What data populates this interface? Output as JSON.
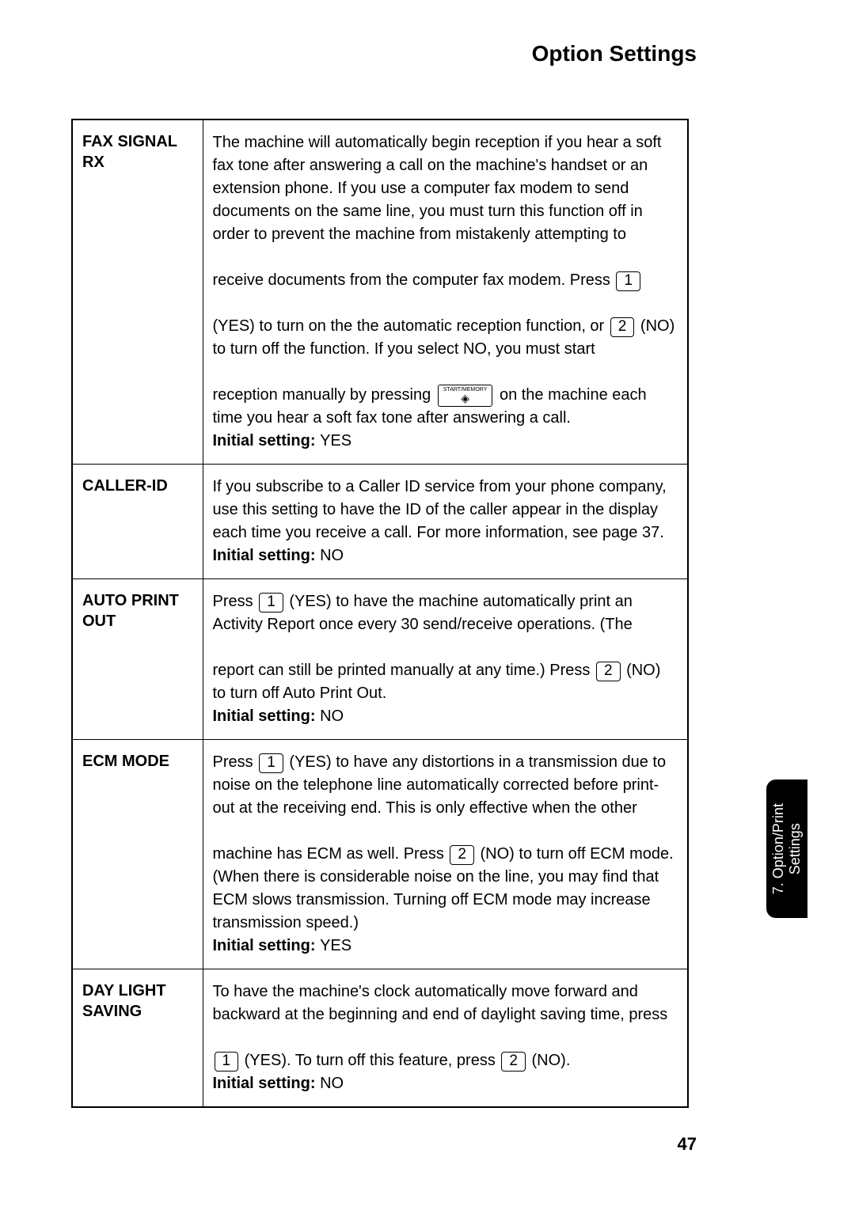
{
  "page": {
    "title": "Option Settings",
    "number": "47"
  },
  "sideTab": {
    "line1": "7. Option/Print",
    "line2": "Settings"
  },
  "keys": {
    "one": "1",
    "two": "2",
    "startTop": "START/",
    "startMid": "MEMORY",
    "startIcon": "◈"
  },
  "rows": {
    "faxSignal": {
      "label": "FAX SIGNAL RX",
      "p1": "The machine will automatically begin reception if you hear a soft fax tone after answering a call on the machine's handset or an extension phone. If you use a computer fax modem to send documents on the same line, you must turn this function off in order to prevent the machine from mistakenly attempting to",
      "p2a": "receive documents from the computer fax modem.  Press ",
      "p3a": "(YES) to turn on the the automatic reception function, or ",
      "p3b": " (NO) to turn off the function. If you select NO, you must start",
      "p4a": "reception manually by pressing ",
      "p4b": " on the machine each time you hear a soft fax tone after answering a call.",
      "initialLabel": "Initial setting: ",
      "initialValue": "YES"
    },
    "callerId": {
      "label": "CALLER-ID",
      "p1": "If you subscribe to a Caller ID service from your phone company, use this setting to have the ID of the caller appear in the display each time you receive a call. For more information, see page 37.",
      "initialLabel": "Initial setting: ",
      "initialValue": "NO"
    },
    "autoPrint": {
      "label": "AUTO PRINT OUT",
      "p1a": "Press ",
      "p1b": " (YES) to have the machine automatically print an Activity Report once every 30 send/receive operations. (The",
      "p2a": "report can still be printed manually at any time.) Press ",
      "p2b": " (NO) to turn off Auto Print Out.",
      "initialLabel": "Initial setting: ",
      "initialValue": "NO"
    },
    "ecm": {
      "label": "ECM MODE",
      "p1a": "Press ",
      "p1b": " (YES) to have any distortions in a transmission due to noise on the telephone line automatically corrected before print-out at the receiving end. This is only effective when the other",
      "p2a": "machine has ECM as well. Press ",
      "p2b": " (NO) to turn off ECM mode. (When there is considerable noise on the line, you may find that ECM slows transmission. Turning off ECM mode may increase transmission speed.)",
      "initialLabel": "Initial setting: ",
      "initialValue": "YES"
    },
    "dayLight": {
      "label": "DAY LIGHT SAVING",
      "p1": "To have the machine's clock automatically move forward and backward at the beginning and end of daylight saving time, press",
      "p2a": "",
      "p2b": " (YES). To turn off this feature, press ",
      "p2c": " (NO).",
      "initialLabel": "Initial setting: ",
      "initialValue": "NO"
    }
  }
}
